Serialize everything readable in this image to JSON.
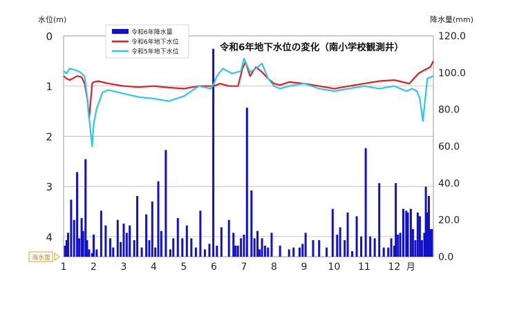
{
  "chart_data": {
    "type": "bar+line",
    "title": "令和6年地下水位の変化（南小学校観測井）",
    "left_axis": {
      "label": "水位(m)",
      "range": [
        0,
        4.4
      ],
      "inverted": true,
      "ticks": [
        "0",
        "1",
        "2",
        "3",
        "4"
      ]
    },
    "right_axis": {
      "label": "降水量(mm)",
      "range": [
        0,
        120
      ],
      "ticks": [
        "0.0",
        "20.0",
        "40.0",
        "60.0",
        "80.0",
        "100.0",
        "120.0"
      ]
    },
    "x_axis": {
      "range": [
        1,
        13.3
      ],
      "ticks": [
        "1",
        "2",
        "3",
        "4",
        "5",
        "6",
        "7",
        "8",
        "9",
        "10",
        "11",
        "12"
      ],
      "unit": "月"
    },
    "sea_level_label": "海水面",
    "grid": true,
    "legend_position": "top-left",
    "legend": [
      {
        "name": "令和6年降水量",
        "color": "#1111cc"
      },
      {
        "name": "令和6年地下水位",
        "color": "#e02020"
      },
      {
        "name": "令和5年地下水位",
        "color": "#2cc6ee"
      }
    ],
    "series": [
      {
        "name": "令和6年地下水位",
        "axis": "left",
        "color": "#e02020",
        "x": [
          1.0,
          1.1,
          1.2,
          1.3,
          1.45,
          1.6,
          1.7,
          1.8,
          1.85,
          1.9,
          1.95,
          2.0,
          2.15,
          2.5,
          3.0,
          3.5,
          4.0,
          4.5,
          5.0,
          5.5,
          5.9,
          6.0,
          6.2,
          6.5,
          6.8,
          6.95,
          7.05,
          7.2,
          7.4,
          7.6,
          7.8,
          8.0,
          8.2,
          8.5,
          9.0,
          9.5,
          10.0,
          10.5,
          11.0,
          11.5,
          12.0,
          12.5,
          12.8,
          13.0,
          13.2,
          13.3
        ],
        "values": [
          0.8,
          0.85,
          0.88,
          0.85,
          0.8,
          0.82,
          0.95,
          1.3,
          1.65,
          1.3,
          0.95,
          0.92,
          0.9,
          0.95,
          1.0,
          1.02,
          1.0,
          1.03,
          1.05,
          1.0,
          1.0,
          1.0,
          0.95,
          1.0,
          1.0,
          0.65,
          0.52,
          0.8,
          0.62,
          0.72,
          0.85,
          0.95,
          0.98,
          0.92,
          0.95,
          1.0,
          1.05,
          1.0,
          0.95,
          0.9,
          0.88,
          0.95,
          0.75,
          0.68,
          0.62,
          0.5
        ]
      },
      {
        "name": "令和5年地下水位",
        "axis": "left",
        "color": "#2cc6ee",
        "x": [
          1.0,
          1.1,
          1.2,
          1.4,
          1.55,
          1.7,
          1.78,
          1.83,
          1.88,
          1.95,
          2.0,
          2.1,
          2.3,
          2.5,
          3.0,
          3.5,
          4.0,
          4.5,
          5.0,
          5.5,
          5.9,
          6.0,
          6.1,
          6.3,
          6.6,
          6.9,
          7.0,
          7.2,
          7.4,
          7.6,
          7.8,
          8.0,
          8.2,
          8.5,
          9.0,
          9.5,
          10.0,
          10.5,
          11.0,
          11.5,
          12.0,
          12.4,
          12.6,
          12.75,
          12.85,
          12.95,
          13.1,
          13.3
        ],
        "values": [
          0.7,
          0.75,
          0.65,
          0.68,
          0.72,
          0.8,
          1.2,
          1.55,
          1.8,
          2.2,
          1.75,
          1.45,
          1.12,
          1.08,
          1.15,
          1.22,
          1.25,
          1.3,
          1.2,
          1.0,
          1.05,
          0.95,
          0.8,
          0.65,
          0.75,
          0.7,
          0.45,
          0.72,
          0.65,
          0.55,
          0.85,
          1.0,
          1.05,
          1.0,
          0.95,
          1.05,
          1.1,
          1.05,
          1.0,
          1.05,
          1.0,
          1.1,
          1.05,
          1.1,
          1.25,
          1.7,
          0.85,
          0.8
        ]
      },
      {
        "name": "令和6年降水量",
        "axis": "right",
        "color": "#1111cc",
        "x": [
          1.05,
          1.1,
          1.15,
          1.25,
          1.35,
          1.45,
          1.52,
          1.6,
          1.65,
          1.73,
          1.78,
          1.85,
          1.95,
          2.0,
          2.1,
          2.25,
          2.4,
          2.55,
          2.65,
          2.8,
          2.9,
          3.0,
          3.1,
          3.2,
          3.35,
          3.45,
          3.6,
          3.75,
          3.85,
          3.95,
          4.05,
          4.15,
          4.25,
          4.4,
          4.55,
          4.65,
          4.8,
          4.95,
          5.1,
          5.25,
          5.4,
          5.55,
          5.7,
          5.85,
          5.98,
          6.1,
          6.25,
          6.5,
          6.65,
          6.72,
          6.8,
          6.9,
          7.0,
          7.1,
          7.25,
          7.35,
          7.45,
          7.52,
          7.6,
          7.7,
          7.8,
          7.92,
          8.2,
          8.5,
          8.65,
          8.85,
          8.95,
          9.05,
          9.3,
          9.5,
          9.75,
          9.95,
          10.1,
          10.2,
          10.35,
          10.45,
          10.6,
          10.75,
          10.9,
          11.05,
          11.2,
          11.35,
          11.5,
          11.65,
          11.8,
          11.9,
          12.0,
          12.05,
          12.12,
          12.2,
          12.3,
          12.4,
          12.45,
          12.55,
          12.62,
          12.7,
          12.78,
          12.85,
          12.92,
          13.0,
          13.05,
          13.1,
          13.15,
          13.2,
          13.25
        ],
        "values": [
          6,
          9,
          13,
          31,
          20,
          46,
          10,
          21,
          14,
          53,
          9,
          4,
          2,
          12,
          4,
          25,
          17,
          10,
          5,
          20,
          8,
          18,
          13,
          17,
          9,
          33,
          5,
          23,
          9,
          30,
          5,
          41,
          14,
          58,
          4,
          10,
          21,
          10,
          17,
          10,
          5,
          25,
          4,
          7,
          113,
          6,
          16,
          20,
          13,
          6,
          6,
          10,
          12,
          81,
          36,
          10,
          14,
          4,
          10,
          6,
          5,
          13,
          6,
          4,
          5,
          5,
          7,
          13,
          9,
          9,
          5,
          26,
          12,
          16,
          9,
          24,
          3,
          22,
          11,
          59,
          11,
          10,
          40,
          5,
          5,
          10,
          6,
          40,
          12,
          13,
          26,
          25,
          24,
          26,
          15,
          9,
          24,
          22,
          9,
          13,
          38,
          24,
          33,
          15,
          15
        ]
      }
    ]
  }
}
